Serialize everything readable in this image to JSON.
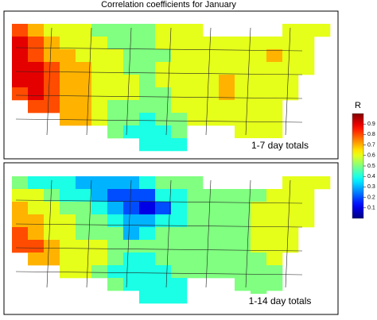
{
  "title": "Correlation coefficients for January",
  "colorbar": {
    "label": "R",
    "lim": [
      0,
      1
    ],
    "ticks": [
      0.1,
      0.2,
      0.3,
      0.4,
      0.5,
      0.6,
      0.7,
      0.8,
      0.9
    ]
  },
  "maps": [
    {
      "label": "1-7 day totals",
      "grid": [
        [
          0.8,
          0.7,
          0.6,
          0.6,
          0.6,
          0.5,
          0.5,
          0.5,
          0.5,
          0.6,
          0.6,
          0.6,
          null,
          null,
          null,
          null,
          null,
          0.6,
          0.6,
          0.6
        ],
        [
          0.9,
          0.8,
          0.7,
          0.6,
          0.6,
          0.6,
          0.5,
          0.5,
          0.5,
          0.6,
          0.6,
          0.6,
          0.6,
          0.6,
          0.6,
          0.6,
          0.6,
          0.6,
          0.6,
          null
        ],
        [
          0.9,
          0.8,
          0.7,
          0.7,
          0.6,
          0.6,
          0.6,
          0.5,
          0.5,
          0.5,
          0.6,
          0.6,
          0.6,
          0.6,
          0.6,
          0.6,
          0.7,
          0.6,
          0.6,
          null
        ],
        [
          0.9,
          0.9,
          0.8,
          0.7,
          0.7,
          0.6,
          0.6,
          0.5,
          0.5,
          0.6,
          0.6,
          0.6,
          0.6,
          0.6,
          0.6,
          0.6,
          0.6,
          0.6,
          0.6,
          null
        ],
        [
          0.9,
          0.9,
          0.8,
          0.7,
          0.7,
          0.6,
          0.6,
          0.6,
          0.5,
          0.6,
          0.6,
          0.6,
          0.6,
          0.7,
          0.6,
          0.6,
          0.6,
          0.6,
          null,
          null
        ],
        [
          0.8,
          0.9,
          0.8,
          0.7,
          0.7,
          0.6,
          0.6,
          0.6,
          0.5,
          0.5,
          0.6,
          0.6,
          0.6,
          0.7,
          0.6,
          0.6,
          0.6,
          0.6,
          null,
          null
        ],
        [
          null,
          0.8,
          0.8,
          0.7,
          0.7,
          0.6,
          0.5,
          0.5,
          0.5,
          0.5,
          0.6,
          0.6,
          0.6,
          0.6,
          0.6,
          0.6,
          0.6,
          null,
          null,
          null
        ],
        [
          null,
          null,
          null,
          0.7,
          0.7,
          0.6,
          0.5,
          0.5,
          0.4,
          0.5,
          0.5,
          0.6,
          0.6,
          0.6,
          0.6,
          0.6,
          0.6,
          null,
          null,
          null
        ],
        [
          null,
          null,
          null,
          null,
          null,
          null,
          0.5,
          0.4,
          0.4,
          0.4,
          0.5,
          null,
          null,
          null,
          0.6,
          0.6,
          0.6,
          null,
          null,
          null
        ],
        [
          null,
          null,
          null,
          null,
          null,
          null,
          null,
          null,
          0.4,
          0.4,
          0.4,
          null,
          null,
          null,
          null,
          0.6,
          null,
          null,
          null,
          null
        ]
      ]
    },
    {
      "label": "1-14 day totals",
      "grid": [
        [
          0.5,
          0.4,
          0.4,
          0.4,
          0.3,
          0.3,
          0.3,
          0.3,
          0.4,
          0.5,
          0.5,
          0.5,
          null,
          null,
          null,
          null,
          null,
          0.6,
          0.6,
          0.6
        ],
        [
          0.6,
          0.6,
          0.5,
          0.4,
          0.4,
          0.3,
          0.2,
          0.2,
          0.2,
          0.4,
          0.4,
          0.5,
          0.5,
          0.5,
          0.5,
          0.5,
          0.6,
          0.6,
          0.6,
          null
        ],
        [
          0.7,
          0.6,
          0.6,
          0.5,
          0.5,
          0.4,
          0.3,
          0.2,
          0.1,
          0.2,
          0.4,
          0.5,
          0.5,
          0.5,
          0.5,
          0.6,
          0.6,
          0.6,
          0.6,
          null
        ],
        [
          0.7,
          0.7,
          0.6,
          0.6,
          0.5,
          0.5,
          0.4,
          0.3,
          0.3,
          0.4,
          0.4,
          0.5,
          0.5,
          0.5,
          0.5,
          0.6,
          0.6,
          0.6,
          0.6,
          null
        ],
        [
          0.8,
          0.7,
          0.6,
          0.6,
          0.5,
          0.5,
          0.5,
          0.3,
          0.4,
          0.5,
          0.5,
          0.5,
          0.5,
          0.5,
          0.5,
          0.6,
          0.6,
          0.6,
          null,
          null
        ],
        [
          0.8,
          0.8,
          0.7,
          0.6,
          0.6,
          0.6,
          0.5,
          0.5,
          0.5,
          0.5,
          0.5,
          0.5,
          0.5,
          0.5,
          0.5,
          0.6,
          0.6,
          0.6,
          null,
          null
        ],
        [
          null,
          0.7,
          0.7,
          0.6,
          0.6,
          0.6,
          0.5,
          0.4,
          0.4,
          0.5,
          0.5,
          0.5,
          0.5,
          0.5,
          0.5,
          0.5,
          0.6,
          null,
          null,
          null
        ],
        [
          null,
          null,
          null,
          0.6,
          0.6,
          0.5,
          0.4,
          0.4,
          0.4,
          0.4,
          0.5,
          0.5,
          0.5,
          0.5,
          0.5,
          0.5,
          0.5,
          null,
          null,
          null
        ],
        [
          null,
          null,
          null,
          null,
          null,
          null,
          0.5,
          0.4,
          0.4,
          0.4,
          0.4,
          null,
          null,
          null,
          0.5,
          0.5,
          0.5,
          null,
          null,
          null
        ],
        [
          null,
          null,
          null,
          null,
          null,
          null,
          null,
          null,
          0.4,
          0.4,
          0.4,
          null,
          null,
          null,
          null,
          0.5,
          null,
          null,
          null,
          null
        ]
      ]
    }
  ]
}
